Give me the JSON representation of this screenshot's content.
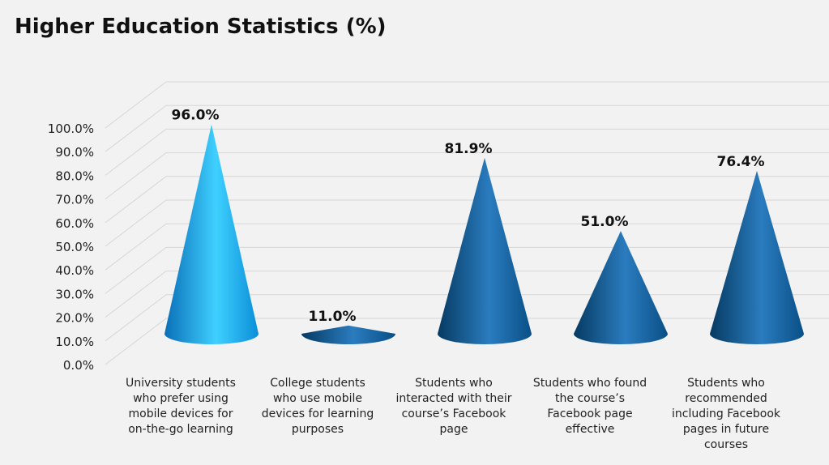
{
  "chart_data": {
    "type": "bar",
    "title": "Higher Education Statistics (%)",
    "categories": [
      [
        "University students",
        "who prefer using",
        "mobile devices for",
        "on-the-go learning"
      ],
      [
        "College students",
        "who use mobile",
        "devices for learning",
        "purposes"
      ],
      [
        "Students who",
        "interacted with their",
        "course’s Facebook",
        "page"
      ],
      [
        "Students who found",
        "the course’s",
        "Facebook page",
        "effective"
      ],
      [
        "Students who",
        "recommended",
        "including Facebook",
        "pages in future",
        "courses"
      ]
    ],
    "values": [
      96.0,
      11.0,
      81.9,
      51.0,
      76.4
    ],
    "value_labels": [
      "96.0%",
      "11.0%",
      "81.9%",
      "51.0%",
      "76.4%"
    ],
    "yticks": [
      "0.0%",
      "10.0%",
      "20.0%",
      "30.0%",
      "40.0%",
      "50.0%",
      "60.0%",
      "70.0%",
      "80.0%",
      "90.0%",
      "100.0%"
    ],
    "ylim": [
      0,
      100
    ],
    "grid": true,
    "colors": {
      "highlight": [
        "#0a6fb8",
        "#3fd0ff",
        "#0a8ed8"
      ],
      "normal": [
        "#063a62",
        "#2a7cbf",
        "#0a4f86"
      ]
    }
  }
}
